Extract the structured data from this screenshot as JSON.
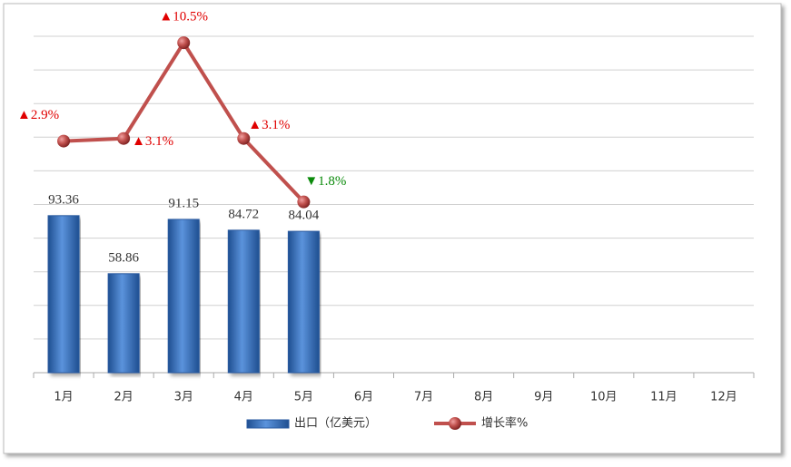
{
  "chart_data": {
    "type": "bar-line",
    "categories": [
      "1月",
      "2月",
      "3月",
      "4月",
      "5月",
      "6月",
      "7月",
      "8月",
      "9月",
      "10月",
      "11月",
      "12月"
    ],
    "series": [
      {
        "name": "出口（亿美元）",
        "type": "bar",
        "color": "#3a75c4",
        "values": [
          93.36,
          58.86,
          91.15,
          84.72,
          84.04,
          null,
          null,
          null,
          null,
          null,
          null,
          null
        ]
      },
      {
        "name": "增长率%",
        "type": "line",
        "axis": "y2",
        "color": "#c0504d",
        "values": [
          2.9,
          3.1,
          10.5,
          3.1,
          -1.8,
          null,
          null,
          null,
          null,
          null,
          null,
          null
        ],
        "value_labels": [
          "▲2.9%",
          "▲3.1%",
          "▲10.5%",
          "▲3.1%",
          "▼1.8%",
          null,
          null,
          null,
          null,
          null,
          null,
          null
        ]
      }
    ],
    "ylim": [
      0,
      200
    ],
    "y2lim": [
      -15,
      11
    ],
    "grid": true,
    "legend": "bottom"
  }
}
